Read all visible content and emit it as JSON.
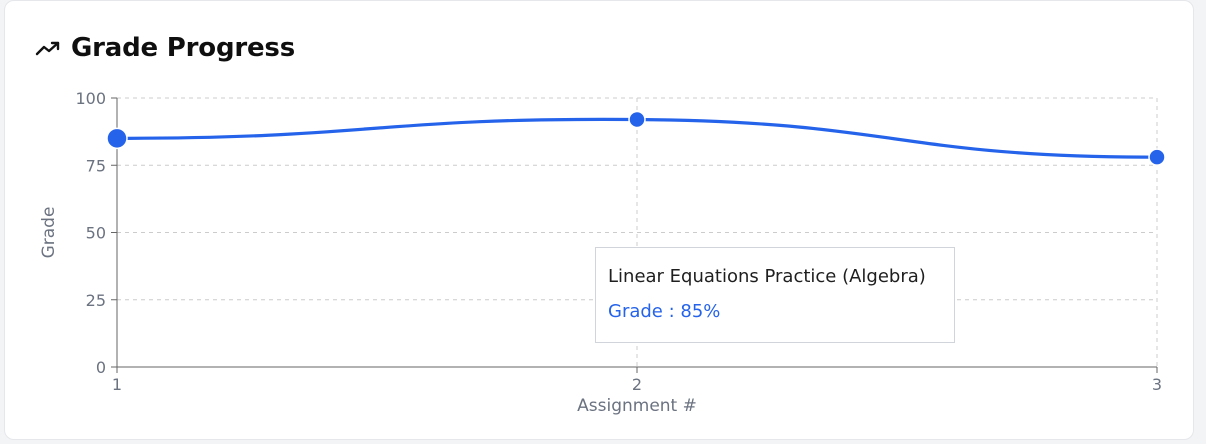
{
  "header": {
    "title": "Grade Progress",
    "icon": "trending-up-icon"
  },
  "colors": {
    "line": "#2563eb",
    "grid": "#cccccc",
    "axis": "#666666"
  },
  "chart_data": {
    "type": "line",
    "title": "Grade Progress",
    "xlabel": "Assignment #",
    "ylabel": "Grade",
    "x": [
      1,
      2,
      3
    ],
    "ylim": [
      0,
      100
    ],
    "yticks": [
      0,
      25,
      50,
      75,
      100
    ],
    "xticks": [
      1,
      2,
      3
    ],
    "series": [
      {
        "values": [
          85,
          92,
          78
        ]
      }
    ],
    "grid": true,
    "curve": "smooth"
  },
  "tooltip": {
    "title": "Linear Equations Practice (Algebra)",
    "value_text": "Grade : 85%"
  }
}
